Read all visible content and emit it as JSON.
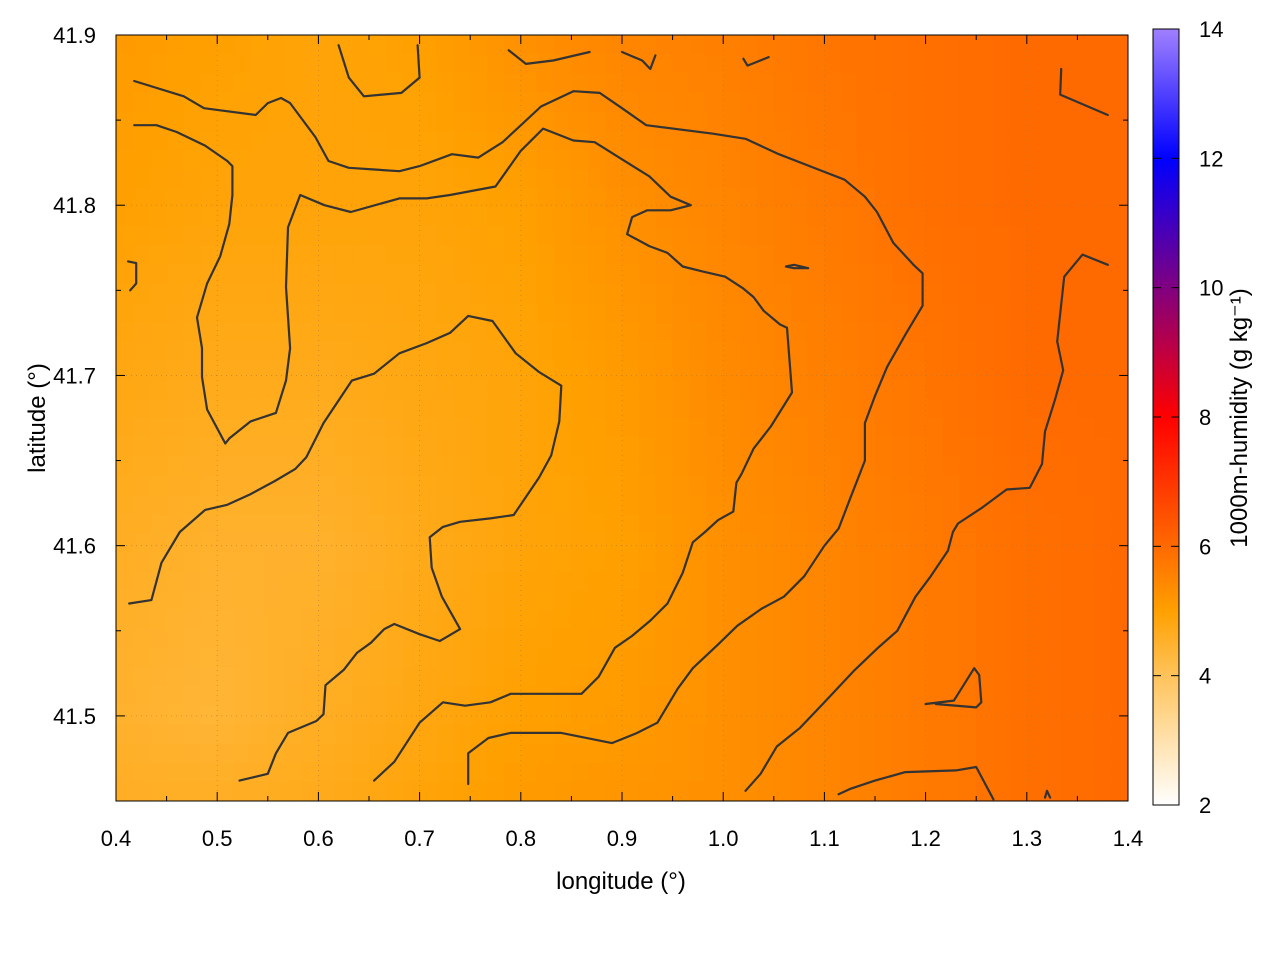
{
  "chart_data": {
    "type": "heatmap",
    "title": "",
    "xlabel": "longitude (°)",
    "ylabel": "latitude (°)",
    "colorbar_label": "1000m-humidity (g kg⁻¹)",
    "xlim": [
      0.4,
      1.4
    ],
    "ylim": [
      41.45,
      41.9
    ],
    "x_ticks": [
      "0.4",
      "0.5",
      "0.6",
      "0.7",
      "0.8",
      "0.9",
      "1.0",
      "1.1",
      "1.2",
      "1.3",
      "1.4"
    ],
    "y_ticks": [
      "41.5",
      "41.6",
      "41.7",
      "41.8",
      "41.9"
    ],
    "colorbar_range": [
      2,
      14
    ],
    "colorbar_ticks": [
      "2",
      "4",
      "6",
      "8",
      "10",
      "12",
      "14"
    ],
    "colorbar_colors": [
      {
        "value": 2,
        "color": "#ffffff"
      },
      {
        "value": 4,
        "color": "#ffc35a"
      },
      {
        "value": 5,
        "color": "#ffa000"
      },
      {
        "value": 6,
        "color": "#ff6a00"
      },
      {
        "value": 8,
        "color": "#ff0000"
      },
      {
        "value": 10,
        "color": "#800080"
      },
      {
        "value": 12,
        "color": "#0000ff"
      },
      {
        "value": 14,
        "color": "#a080ff"
      }
    ],
    "grid": true,
    "field_samples": {
      "x": [
        0.4,
        0.5,
        0.6,
        0.7,
        0.8,
        0.9,
        1.0,
        1.1,
        1.2,
        1.3,
        1.4
      ],
      "y": [
        41.9,
        41.8,
        41.7,
        41.6,
        41.5,
        41.45
      ],
      "values": [
        [
          5.1,
          5.0,
          4.9,
          5.0,
          5.3,
          5.5,
          5.6,
          5.8,
          5.9,
          6.0,
          6.0
        ],
        [
          5.0,
          4.9,
          4.9,
          4.9,
          5.0,
          5.3,
          5.5,
          5.7,
          5.9,
          6.0,
          6.0
        ],
        [
          4.8,
          4.7,
          4.7,
          4.8,
          4.9,
          5.1,
          5.4,
          5.6,
          5.8,
          6.0,
          6.0
        ],
        [
          4.6,
          4.5,
          4.5,
          4.7,
          4.9,
          5.0,
          5.3,
          5.5,
          5.7,
          5.9,
          6.0
        ],
        [
          4.5,
          4.4,
          4.6,
          4.8,
          5.0,
          5.1,
          5.3,
          5.5,
          5.7,
          5.9,
          6.0
        ],
        [
          4.6,
          4.6,
          4.7,
          4.9,
          5.1,
          5.2,
          5.3,
          5.5,
          5.7,
          5.9,
          6.0
        ]
      ]
    },
    "contours": [
      [
        [
          0.418,
          41.873
        ],
        [
          0.467,
          41.864
        ],
        [
          0.487,
          41.857
        ],
        [
          0.538,
          41.853
        ],
        [
          0.55,
          41.86
        ],
        [
          0.563,
          41.863
        ],
        [
          0.572,
          41.86
        ],
        [
          0.597,
          41.84
        ],
        [
          0.61,
          41.826
        ],
        [
          0.63,
          41.822
        ],
        [
          0.68,
          41.82
        ],
        [
          0.7,
          41.823
        ],
        [
          0.732,
          41.83
        ],
        [
          0.758,
          41.828
        ],
        [
          0.782,
          41.837
        ],
        [
          0.82,
          41.858
        ],
        [
          0.852,
          41.867
        ],
        [
          0.878,
          41.866
        ],
        [
          0.9,
          41.857
        ],
        [
          0.924,
          41.847
        ],
        [
          0.99,
          41.842
        ],
        [
          1.022,
          41.839
        ],
        [
          1.055,
          41.83
        ],
        [
          1.094,
          41.821
        ],
        [
          1.12,
          41.815
        ],
        [
          1.14,
          41.805
        ],
        [
          1.152,
          41.796
        ],
        [
          1.168,
          41.778
        ],
        [
          1.188,
          41.765
        ],
        [
          1.197,
          41.76
        ],
        [
          1.197,
          41.741
        ],
        [
          1.18,
          41.724
        ],
        [
          1.162,
          41.705
        ],
        [
          1.15,
          41.688
        ],
        [
          1.14,
          41.672
        ],
        [
          1.14,
          41.65
        ],
        [
          1.125,
          41.627
        ],
        [
          1.114,
          41.61
        ],
        [
          1.1,
          41.6
        ],
        [
          1.08,
          41.582
        ],
        [
          1.06,
          41.57
        ],
        [
          1.038,
          41.563
        ],
        [
          1.014,
          41.553
        ],
        [
          0.995,
          41.542
        ],
        [
          0.97,
          41.528
        ],
        [
          0.955,
          41.516
        ],
        [
          0.935,
          41.496
        ],
        [
          0.915,
          41.49
        ],
        [
          0.89,
          41.484
        ],
        [
          0.84,
          41.49
        ],
        [
          0.79,
          41.49
        ],
        [
          0.768,
          41.487
        ],
        [
          0.748,
          41.478
        ],
        [
          0.748,
          41.46
        ]
      ],
      [
        [
          0.418,
          41.847
        ],
        [
          0.44,
          41.847
        ],
        [
          0.46,
          41.843
        ],
        [
          0.488,
          41.835
        ],
        [
          0.51,
          41.826
        ],
        [
          0.515,
          41.823
        ],
        [
          0.515,
          41.806
        ],
        [
          0.512,
          41.789
        ],
        [
          0.503,
          41.77
        ],
        [
          0.49,
          41.754
        ],
        [
          0.48,
          41.734
        ],
        [
          0.485,
          41.716
        ],
        [
          0.485,
          41.699
        ],
        [
          0.49,
          41.68
        ],
        [
          0.508,
          41.66
        ],
        [
          0.512,
          41.663
        ],
        [
          0.533,
          41.673
        ],
        [
          0.558,
          41.678
        ],
        [
          0.568,
          41.697
        ],
        [
          0.572,
          41.716
        ],
        [
          0.568,
          41.752
        ],
        [
          0.57,
          41.787
        ],
        [
          0.582,
          41.806
        ],
        [
          0.606,
          41.8
        ],
        [
          0.632,
          41.796
        ],
        [
          0.68,
          41.804
        ],
        [
          0.707,
          41.804
        ],
        [
          0.73,
          41.806
        ],
        [
          0.775,
          41.811
        ],
        [
          0.8,
          41.832
        ],
        [
          0.822,
          41.845
        ],
        [
          0.852,
          41.838
        ],
        [
          0.873,
          41.837
        ],
        [
          0.9,
          41.827
        ],
        [
          0.927,
          41.817
        ],
        [
          0.948,
          41.805
        ],
        [
          0.968,
          41.8
        ],
        [
          0.948,
          41.797
        ],
        [
          0.925,
          41.797
        ],
        [
          0.91,
          41.793
        ],
        [
          0.905,
          41.783
        ],
        [
          0.927,
          41.776
        ],
        [
          0.945,
          41.772
        ],
        [
          0.96,
          41.764
        ],
        [
          0.98,
          41.761
        ],
        [
          1.002,
          41.758
        ],
        [
          1.02,
          41.751
        ],
        [
          1.03,
          41.746
        ],
        [
          1.04,
          41.738
        ],
        [
          1.056,
          41.73
        ],
        [
          1.063,
          41.728
        ],
        [
          1.068,
          41.69
        ],
        [
          1.047,
          41.67
        ],
        [
          1.03,
          41.657
        ],
        [
          1.018,
          41.642
        ],
        [
          1.013,
          41.637
        ],
        [
          1.01,
          41.62
        ],
        [
          0.995,
          41.615
        ],
        [
          0.982,
          41.608
        ],
        [
          0.97,
          41.602
        ],
        [
          0.96,
          41.584
        ],
        [
          0.945,
          41.566
        ],
        [
          0.928,
          41.556
        ],
        [
          0.91,
          41.547
        ],
        [
          0.893,
          41.54
        ],
        [
          0.877,
          41.523
        ],
        [
          0.86,
          41.513
        ],
        [
          0.83,
          41.513
        ],
        [
          0.79,
          41.513
        ],
        [
          0.77,
          41.508
        ],
        [
          0.745,
          41.506
        ],
        [
          0.723,
          41.508
        ],
        [
          0.7,
          41.496
        ],
        [
          0.675,
          41.473
        ],
        [
          0.655,
          41.462
        ]
      ],
      [
        [
          0.412,
          41.767
        ],
        [
          0.42,
          41.766
        ],
        [
          0.42,
          41.754
        ],
        [
          0.414,
          41.75
        ]
      ],
      [
        [
          0.413,
          41.566
        ],
        [
          0.435,
          41.568
        ],
        [
          0.445,
          41.59
        ],
        [
          0.463,
          41.608
        ],
        [
          0.488,
          41.621
        ],
        [
          0.51,
          41.624
        ],
        [
          0.532,
          41.63
        ],
        [
          0.557,
          41.638
        ],
        [
          0.577,
          41.645
        ],
        [
          0.588,
          41.652
        ],
        [
          0.605,
          41.672
        ],
        [
          0.633,
          41.697
        ],
        [
          0.655,
          41.701
        ],
        [
          0.68,
          41.713
        ],
        [
          0.707,
          41.719
        ],
        [
          0.73,
          41.725
        ],
        [
          0.748,
          41.735
        ],
        [
          0.772,
          41.732
        ],
        [
          0.795,
          41.713
        ],
        [
          0.818,
          41.702
        ],
        [
          0.84,
          41.694
        ],
        [
          0.838,
          41.673
        ],
        [
          0.83,
          41.653
        ],
        [
          0.818,
          41.64
        ],
        [
          0.793,
          41.618
        ],
        [
          0.77,
          41.616
        ],
        [
          0.74,
          41.614
        ],
        [
          0.723,
          41.611
        ],
        [
          0.71,
          41.605
        ],
        [
          0.712,
          41.587
        ],
        [
          0.722,
          41.57
        ],
        [
          0.74,
          41.551
        ],
        [
          0.72,
          41.544
        ],
        [
          0.7,
          41.548
        ],
        [
          0.675,
          41.554
        ],
        [
          0.665,
          41.551
        ],
        [
          0.652,
          41.543
        ],
        [
          0.638,
          41.537
        ],
        [
          0.625,
          41.527
        ],
        [
          0.607,
          41.518
        ],
        [
          0.605,
          41.501
        ],
        [
          0.598,
          41.497
        ],
        [
          0.57,
          41.49
        ],
        [
          0.558,
          41.478
        ],
        [
          0.55,
          41.466
        ],
        [
          0.522,
          41.462
        ]
      ],
      [
        [
          0.62,
          41.894
        ],
        [
          0.63,
          41.875
        ],
        [
          0.645,
          41.864
        ],
        [
          0.682,
          41.866
        ],
        [
          0.7,
          41.875
        ],
        [
          0.698,
          41.894
        ]
      ],
      [
        [
          0.788,
          41.891
        ],
        [
          0.805,
          41.883
        ],
        [
          0.832,
          41.885
        ],
        [
          0.868,
          41.89
        ]
      ],
      [
        [
          0.9,
          41.89
        ],
        [
          0.92,
          41.885
        ],
        [
          0.928,
          41.88
        ],
        [
          0.933,
          41.888
        ]
      ],
      [
        [
          1.02,
          41.886
        ],
        [
          1.024,
          41.882
        ],
        [
          1.045,
          41.887
        ]
      ],
      [
        [
          1.334,
          41.88
        ],
        [
          1.333,
          41.865
        ],
        [
          1.38,
          41.853
        ]
      ],
      [
        [
          1.062,
          41.764
        ],
        [
          1.07,
          41.765
        ],
        [
          1.084,
          41.763
        ],
        [
          1.07,
          41.763
        ],
        [
          1.062,
          41.764
        ]
      ],
      [
        [
          1.38,
          41.765
        ],
        [
          1.355,
          41.771
        ],
        [
          1.337,
          41.758
        ],
        [
          1.33,
          41.72
        ],
        [
          1.336,
          41.703
        ],
        [
          1.328,
          41.686
        ],
        [
          1.318,
          41.667
        ],
        [
          1.315,
          41.648
        ],
        [
          1.303,
          41.634
        ],
        [
          1.28,
          41.633
        ],
        [
          1.255,
          41.622
        ],
        [
          1.232,
          41.613
        ],
        [
          1.227,
          41.608
        ],
        [
          1.222,
          41.597
        ],
        [
          1.205,
          41.582
        ],
        [
          1.19,
          41.57
        ],
        [
          1.172,
          41.55
        ],
        [
          1.153,
          41.54
        ],
        [
          1.13,
          41.527
        ],
        [
          1.1,
          41.508
        ],
        [
          1.076,
          41.493
        ],
        [
          1.053,
          41.482
        ],
        [
          1.037,
          41.466
        ],
        [
          1.022,
          41.456
        ]
      ],
      [
        [
          1.21,
          41.507
        ],
        [
          1.25,
          41.505
        ],
        [
          1.255,
          41.508
        ],
        [
          1.253,
          41.524
        ],
        [
          1.248,
          41.528
        ],
        [
          1.228,
          41.509
        ],
        [
          1.2,
          41.507
        ]
      ],
      [
        [
          1.114,
          41.454
        ],
        [
          1.125,
          41.457
        ],
        [
          1.15,
          41.462
        ],
        [
          1.18,
          41.467
        ],
        [
          1.23,
          41.468
        ],
        [
          1.25,
          41.47
        ],
        [
          1.267,
          41.451
        ]
      ],
      [
        [
          1.318,
          41.452
        ],
        [
          1.32,
          41.456
        ],
        [
          1.323,
          41.452
        ]
      ]
    ]
  }
}
